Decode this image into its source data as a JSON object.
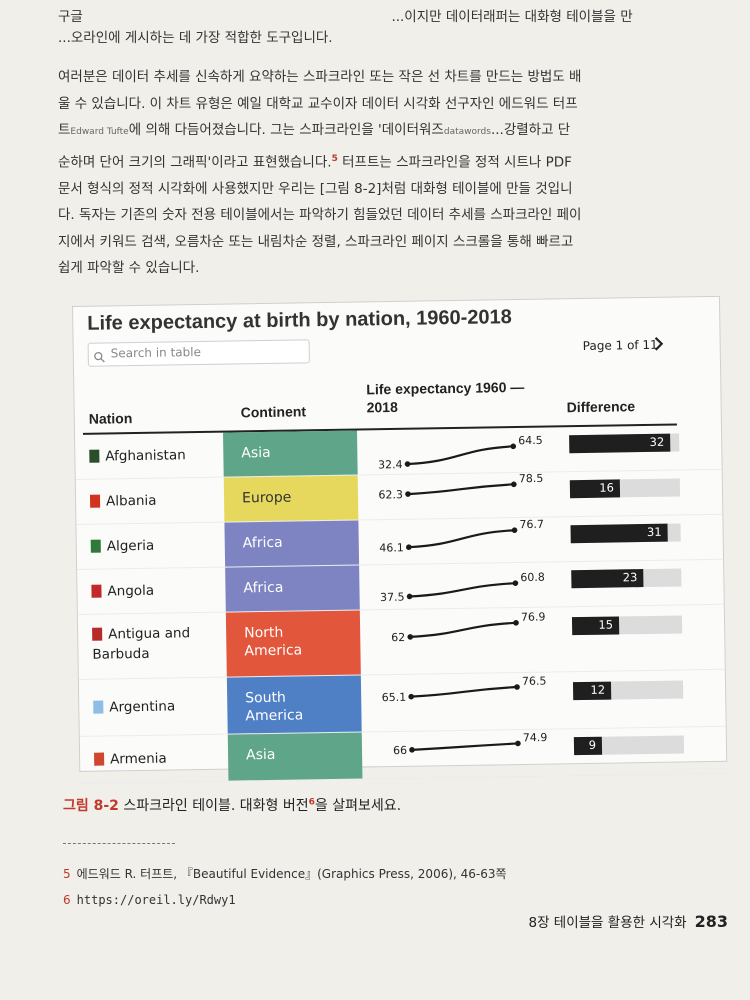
{
  "book": {
    "paragraph_top": "...오라인에 게시하는 데 가장 적합한 도구입니다.",
    "paragraph_top_prefix": "구글",
    "paragraph_top_tail": "...이지만 데이터래퍼는 대화형 테이블을 만",
    "paragraph_main": [
      "여러분은 데이터 추세를 신속하게 요약하는 스파크라인 또는 작은 선 차트를 만드는 방법도 배",
      "울 수 있습니다. 이 차트 유형은 예일 대학교 교수이자 데이터 시각화 선구자인 에드워드 터프",
      "트",
      "Edward Tufte",
      "에 의해 다듬어졌습니다. 그는 스파크라인을 '데이터워즈",
      "datawords",
      "...강렬하고 단",
      "순하며 단어 크기의 그래픽'이라고 표현했습니다.",
      "5",
      " 터프트는 스파크라인을 정적 시트나 PDF",
      "문서 형식의 정적 시각화에 사용했지만 우리는 [그림 8-2]처럼 대화형 테이블에 만들 것입니",
      "다. 독자는 기존의 숫자 전용 테이블에서는 파악하기 힘들었던 데이터 추세를 스파크라인 페이",
      "지에서 키워드 검색, 오름차순 또는 내림차순 정렬, 스파크라인 페이지 스크롤을 통해 빠르고",
      "쉽게 파악할 수 있습니다."
    ]
  },
  "table": {
    "title": "Life expectancy at birth by nation, 1960-2018",
    "search_placeholder": "Search in table",
    "pager": "Page 1 of 11",
    "headers": {
      "nation": "Nation",
      "continent": "Continent",
      "life_line1": "Life expectancy 1960 —",
      "life_line2": "2018",
      "difference": "Difference"
    },
    "rows": [
      {
        "nation": "Afghanistan",
        "continent": "Asia",
        "continent_color": "#5fa58a",
        "start": "32.4",
        "end": "64.5",
        "diff": "32",
        "diff_value": 32,
        "flag": "#2a4d2a"
      },
      {
        "nation": "Albania",
        "continent": "Europe",
        "continent_color": "#e6d85c",
        "start": "62.3",
        "end": "78.5",
        "diff": "16",
        "diff_value": 16,
        "flag": "#d2321e"
      },
      {
        "nation": "Algeria",
        "continent": "Africa",
        "continent_color": "#7e84c2",
        "start": "46.1",
        "end": "76.7",
        "diff": "31",
        "diff_value": 31,
        "flag": "#2f7a3a"
      },
      {
        "nation": "Angola",
        "continent": "Africa",
        "continent_color": "#7e84c2",
        "start": "37.5",
        "end": "60.8",
        "diff": "23",
        "diff_value": 23,
        "flag": "#c0282a"
      },
      {
        "nation": "Antigua and Barbuda",
        "nation_line1": "Antigua and",
        "nation_line2": "Barbuda",
        "continent": "North America",
        "continent_line1": "North",
        "continent_line2": "America",
        "continent_color": "#e2563c",
        "start": "62",
        "end": "76.9",
        "diff": "15",
        "diff_value": 15,
        "flag": "#b72a2a"
      },
      {
        "nation": "Argentina",
        "continent": "South America",
        "continent_line1": "South",
        "continent_line2": "America",
        "continent_color": "#4f7fc5",
        "start": "65.1",
        "end": "76.5",
        "diff": "12",
        "diff_value": 12,
        "flag": "#8fbde6"
      },
      {
        "nation": "Armenia",
        "continent": "Asia",
        "continent_color": "#5fa58a",
        "start": "66",
        "end": "74.9",
        "diff": "9",
        "diff_value": 9,
        "flag": "#d0462f"
      }
    ]
  },
  "caption": {
    "label": "그림 8-2",
    "text": " 스파크라인 테이블. 대화형 버전",
    "sup": "6",
    "tail": "을 살펴보세요."
  },
  "footnotes": {
    "n5": "5",
    "fn5": "에드워드 R. 터프트, 『Beautiful Evidence』(Graphics Press, 2006), 46-63쪽",
    "n6": "6",
    "fn6": "https://oreil.ly/Rdwy1"
  },
  "footer": {
    "chapter": "8장 테이블을 활용한 시각화",
    "page": "283"
  }
}
